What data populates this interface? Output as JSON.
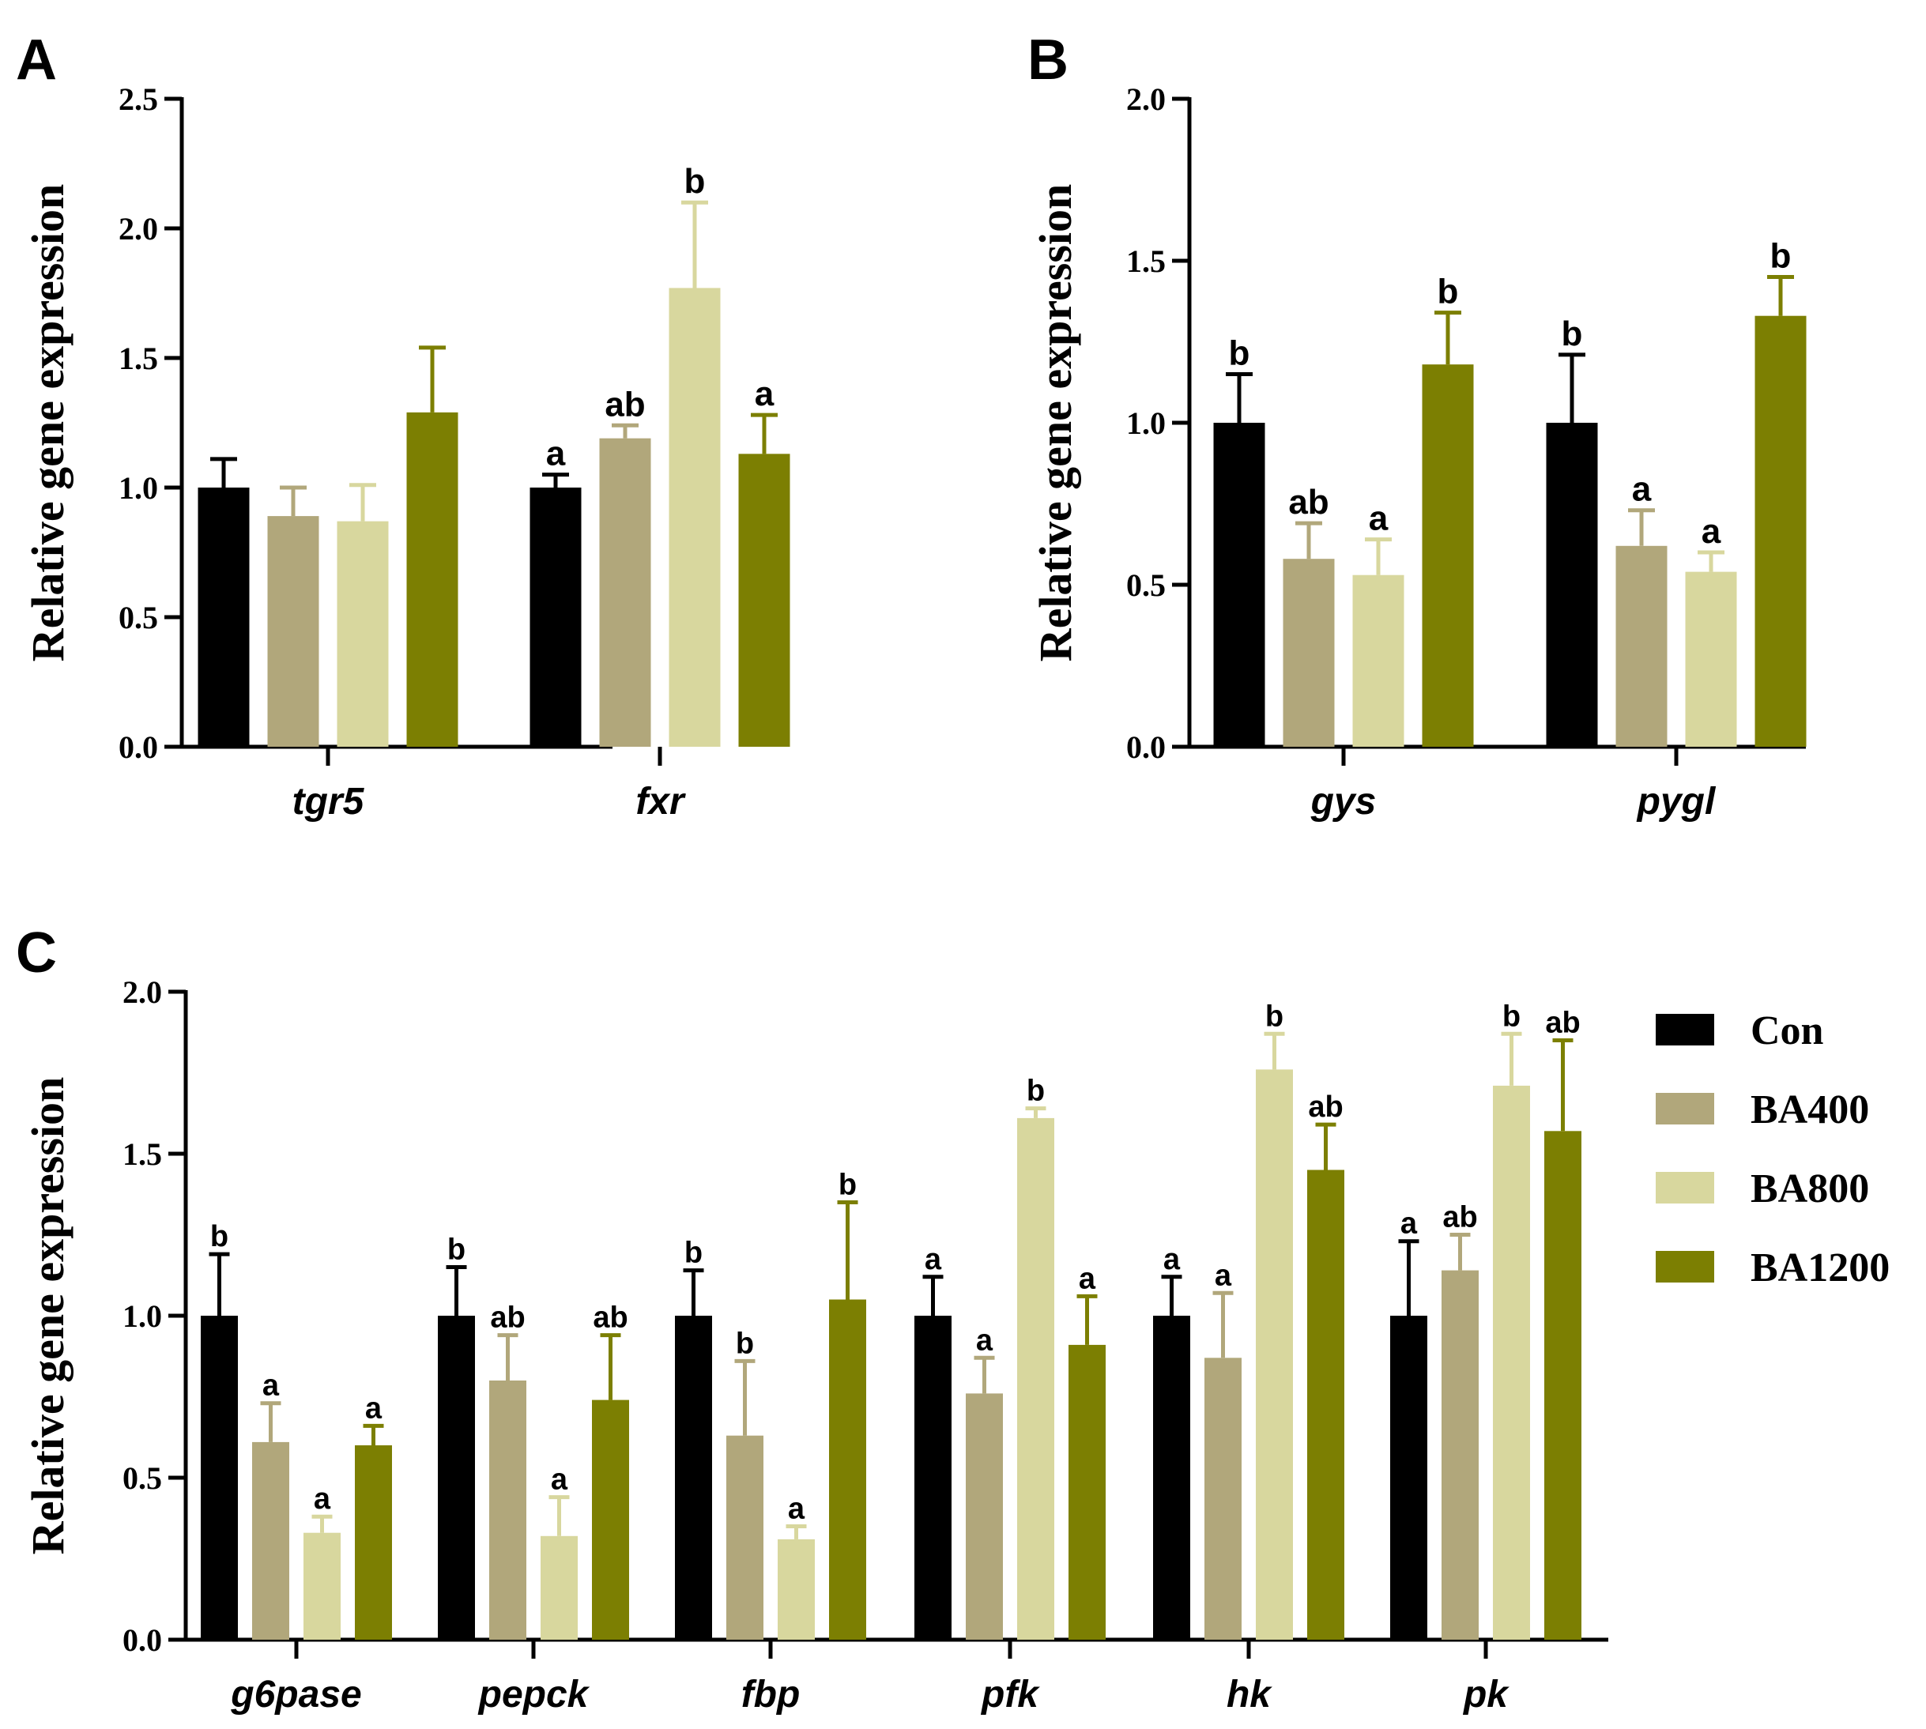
{
  "colors": {
    "Con": "#000000",
    "BA400": "#b1a77b",
    "BA800": "#d8d79e",
    "BA1200": "#7c7f02"
  },
  "legend": {
    "items": [
      "Con",
      "BA400",
      "BA800",
      "BA1200"
    ]
  },
  "chart_data": [
    {
      "panel": "A",
      "type": "bar",
      "title": "",
      "ylabel": "Relative gene expression",
      "xlabel": "",
      "ylim": [
        0,
        2.5
      ],
      "yticks": [
        "0.0",
        "0.5",
        "1.0",
        "1.5",
        "2.0",
        "2.5"
      ],
      "categories": [
        "tgr5",
        "fxr"
      ],
      "series": [
        {
          "name": "Con",
          "values": [
            1.0,
            1.0
          ],
          "errors": [
            0.11,
            0.05
          ],
          "letters": [
            "",
            "a"
          ]
        },
        {
          "name": "BA400",
          "values": [
            0.89,
            1.19
          ],
          "errors": [
            0.11,
            0.05
          ],
          "letters": [
            "",
            "ab"
          ]
        },
        {
          "name": "BA800",
          "values": [
            0.87,
            1.77
          ],
          "errors": [
            0.14,
            0.33
          ],
          "letters": [
            "",
            "b"
          ]
        },
        {
          "name": "BA1200",
          "values": [
            1.29,
            1.13
          ],
          "errors": [
            0.25,
            0.15
          ],
          "letters": [
            "",
            "a"
          ]
        }
      ]
    },
    {
      "panel": "B",
      "type": "bar",
      "title": "",
      "ylabel": "Relative gene expression",
      "xlabel": "",
      "ylim": [
        0,
        2.0
      ],
      "yticks": [
        "0.0",
        "0.5",
        "1.0",
        "1.5",
        "2.0"
      ],
      "categories": [
        "gys",
        "pygl"
      ],
      "series": [
        {
          "name": "Con",
          "values": [
            1.0,
            1.0
          ],
          "errors": [
            0.15,
            0.21
          ],
          "letters": [
            "b",
            "b"
          ]
        },
        {
          "name": "BA400",
          "values": [
            0.58,
            0.62
          ],
          "errors": [
            0.11,
            0.11
          ],
          "letters": [
            "ab",
            "a"
          ]
        },
        {
          "name": "BA800",
          "values": [
            0.53,
            0.54
          ],
          "errors": [
            0.11,
            0.06
          ],
          "letters": [
            "a",
            "a"
          ]
        },
        {
          "name": "BA1200",
          "values": [
            1.18,
            1.33
          ],
          "errors": [
            0.16,
            0.12
          ],
          "letters": [
            "b",
            "b"
          ]
        }
      ]
    },
    {
      "panel": "C",
      "type": "bar",
      "title": "",
      "ylabel": "Relative gene expression",
      "xlabel": "",
      "ylim": [
        0,
        2.0
      ],
      "yticks": [
        "0.0",
        "0.5",
        "1.0",
        "1.5",
        "2.0"
      ],
      "categories": [
        "g6pase",
        "pepck",
        "fbp",
        "pfk",
        "hk",
        "pk"
      ],
      "series": [
        {
          "name": "Con",
          "values": [
            1.0,
            1.0,
            1.0,
            1.0,
            1.0,
            1.0
          ],
          "errors": [
            0.19,
            0.15,
            0.14,
            0.12,
            0.12,
            0.23
          ],
          "letters": [
            "b",
            "b",
            "b",
            "a",
            "a",
            "a"
          ]
        },
        {
          "name": "BA400",
          "values": [
            0.61,
            0.8,
            0.63,
            0.76,
            0.87,
            1.14
          ],
          "errors": [
            0.12,
            0.14,
            0.23,
            0.11,
            0.2,
            0.11
          ],
          "letters": [
            "a",
            "ab",
            "b",
            "a",
            "a",
            "ab"
          ]
        },
        {
          "name": "BA800",
          "values": [
            0.33,
            0.32,
            0.31,
            1.61,
            1.76,
            1.71
          ],
          "errors": [
            0.05,
            0.12,
            0.04,
            0.03,
            0.11,
            0.16
          ],
          "letters": [
            "a",
            "a",
            "a",
            "b",
            "b",
            "b"
          ]
        },
        {
          "name": "BA1200",
          "values": [
            0.6,
            0.74,
            1.05,
            0.91,
            1.45,
            1.57
          ],
          "errors": [
            0.06,
            0.2,
            0.3,
            0.15,
            0.14,
            0.28
          ],
          "letters": [
            "a",
            "ab",
            "b",
            "a",
            "ab",
            "ab"
          ]
        }
      ]
    }
  ]
}
